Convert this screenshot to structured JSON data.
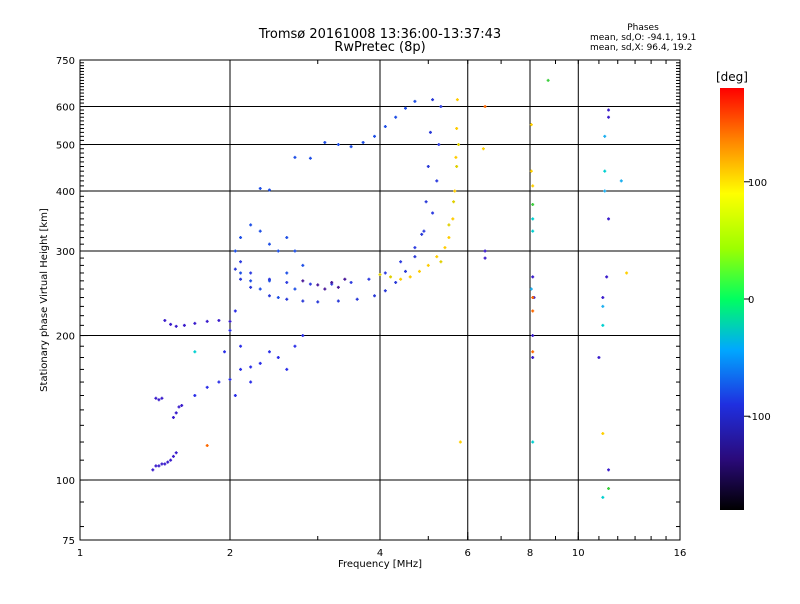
{
  "title": {
    "line1": "Tromsø 20161008 13:36:00-13:37:43",
    "line2": "RwPretec (8p)"
  },
  "phases": {
    "title": "Phases",
    "o_stats": "mean, sd,O:  -94.1, 19.1",
    "x_stats": "mean, sd,X:   96.4, 19.2"
  },
  "colorbar": {
    "unit": "[deg]",
    "tick_labels": [
      "100",
      "0",
      "-100"
    ],
    "tick_values": [
      100,
      0,
      -100
    ],
    "range": [
      -180,
      180
    ]
  },
  "chart_data": {
    "type": "scatter",
    "xlabel": "Frequency [MHz]",
    "ylabel": "Stationary phase Virtual Height [km]",
    "x_scale": "log",
    "y_scale": "log",
    "xlim": [
      1,
      16
    ],
    "ylim": [
      75,
      750
    ],
    "x_ticks": [
      1,
      2,
      4,
      6,
      8,
      10,
      16
    ],
    "x_tick_labels": [
      "1",
      "2",
      "4",
      "6",
      "8",
      "10",
      "16"
    ],
    "y_ticks": [
      75,
      100,
      200,
      300,
      400,
      500,
      600,
      750
    ],
    "y_tick_labels": [
      "75",
      "100",
      "200",
      "300",
      "400",
      "500",
      "600",
      "750"
    ],
    "grid": true,
    "series": [
      {
        "phase": -95,
        "color": "#3a1ccc",
        "points": [
          [
            1.4,
            105
          ],
          [
            1.42,
            107
          ],
          [
            1.44,
            107
          ],
          [
            1.46,
            108
          ],
          [
            1.48,
            108
          ],
          [
            1.5,
            109
          ],
          [
            1.52,
            110
          ],
          [
            1.54,
            112
          ],
          [
            1.56,
            114
          ]
        ]
      },
      {
        "phase": -95,
        "color": "#3a1ccc",
        "points": [
          [
            1.42,
            148
          ],
          [
            1.44,
            147
          ],
          [
            1.46,
            148
          ],
          [
            1.54,
            135
          ],
          [
            1.56,
            138
          ],
          [
            1.58,
            142
          ],
          [
            1.6,
            143
          ]
        ]
      },
      {
        "phase": -95,
        "color": "#3a1ccc",
        "points": [
          [
            1.48,
            215
          ],
          [
            1.52,
            211
          ],
          [
            1.56,
            209
          ],
          [
            1.62,
            210
          ],
          [
            1.7,
            212
          ],
          [
            1.8,
            214
          ],
          [
            1.9,
            215
          ],
          [
            2.0,
            214
          ]
        ]
      },
      {
        "phase": -100,
        "color": "#2a2ee8",
        "points": [
          [
            1.7,
            150
          ],
          [
            1.8,
            156
          ],
          [
            1.9,
            160
          ],
          [
            2.0,
            162
          ],
          [
            2.05,
            150
          ],
          [
            2.1,
            170
          ],
          [
            2.2,
            172
          ],
          [
            2.3,
            175
          ],
          [
            1.95,
            185
          ],
          [
            2.1,
            190
          ],
          [
            2.2,
            160
          ],
          [
            2.4,
            185
          ],
          [
            2.5,
            180
          ],
          [
            2.6,
            170
          ],
          [
            2.7,
            190
          ],
          [
            2.8,
            200
          ],
          [
            2.0,
            205
          ],
          [
            2.05,
            225
          ]
        ]
      },
      {
        "phase": -110,
        "color": "#1f50e6",
        "points": [
          [
            2.05,
            300
          ],
          [
            2.1,
            320
          ],
          [
            2.2,
            340
          ],
          [
            2.3,
            330
          ],
          [
            2.4,
            310
          ],
          [
            2.5,
            300
          ],
          [
            2.6,
            320
          ],
          [
            2.7,
            300
          ],
          [
            2.8,
            280
          ],
          [
            2.6,
            270
          ],
          [
            2.4,
            260
          ],
          [
            2.3,
            250
          ],
          [
            2.2,
            260
          ],
          [
            2.1,
            270
          ],
          [
            2.5,
            240
          ],
          [
            2.7,
            250
          ]
        ]
      },
      {
        "phase": -100,
        "color": "#2a3ad8",
        "points": [
          [
            2.05,
            275
          ],
          [
            2.1,
            262
          ],
          [
            2.2,
            252
          ],
          [
            2.4,
            242
          ],
          [
            2.6,
            238
          ],
          [
            2.8,
            236
          ],
          [
            3.0,
            235
          ],
          [
            3.3,
            236
          ],
          [
            3.6,
            238
          ],
          [
            3.9,
            242
          ],
          [
            4.1,
            248
          ],
          [
            4.3,
            258
          ],
          [
            4.5,
            272
          ],
          [
            4.7,
            292
          ],
          [
            4.85,
            325
          ],
          [
            4.95,
            380
          ],
          [
            5.0,
            450
          ],
          [
            5.05,
            530
          ],
          [
            5.1,
            620
          ]
        ]
      },
      {
        "phase": -90,
        "color": "#2f3ee0",
        "points": [
          [
            2.1,
            285
          ],
          [
            2.2,
            270
          ],
          [
            2.4,
            262
          ],
          [
            2.6,
            258
          ],
          [
            2.9,
            256
          ],
          [
            3.2,
            256
          ],
          [
            3.5,
            258
          ],
          [
            3.8,
            262
          ],
          [
            4.1,
            270
          ],
          [
            4.4,
            285
          ],
          [
            4.7,
            305
          ],
          [
            4.9,
            330
          ],
          [
            5.1,
            360
          ],
          [
            5.2,
            420
          ],
          [
            5.25,
            500
          ],
          [
            5.3,
            600
          ]
        ]
      },
      {
        "phase": -135,
        "color": "#4a1a9a",
        "points": [
          [
            2.8,
            260
          ],
          [
            3.0,
            255
          ],
          [
            3.2,
            258
          ],
          [
            3.4,
            262
          ],
          [
            3.1,
            250
          ],
          [
            3.3,
            252
          ]
        ]
      },
      {
        "phase": -110,
        "color": "#1f4fe6",
        "points": [
          [
            2.3,
            405
          ],
          [
            2.4,
            402
          ],
          [
            2.7,
            470
          ],
          [
            2.9,
            468
          ],
          [
            3.1,
            505
          ],
          [
            3.3,
            500
          ],
          [
            3.5,
            495
          ],
          [
            3.7,
            505
          ],
          [
            3.9,
            520
          ],
          [
            4.1,
            545
          ],
          [
            4.3,
            570
          ],
          [
            4.5,
            595
          ],
          [
            4.7,
            615
          ]
        ]
      },
      {
        "phase": 105,
        "color": "#ffcc00",
        "points": [
          [
            4.4,
            262
          ],
          [
            4.6,
            265
          ],
          [
            4.8,
            272
          ],
          [
            5.0,
            280
          ],
          [
            5.2,
            292
          ],
          [
            5.4,
            305
          ],
          [
            5.5,
            320
          ],
          [
            5.6,
            350
          ],
          [
            5.65,
            400
          ],
          [
            5.68,
            470
          ],
          [
            5.7,
            540
          ],
          [
            5.72,
            620
          ]
        ]
      },
      {
        "phase": 90,
        "color": "#e0d000",
        "points": [
          [
            4.0,
            268
          ],
          [
            4.2,
            265
          ],
          [
            5.3,
            285
          ],
          [
            5.5,
            340
          ],
          [
            5.62,
            380
          ],
          [
            5.7,
            450
          ],
          [
            5.75,
            500
          ]
        ]
      },
      {
        "phase": -95,
        "color": "#3a1ccc",
        "points": [
          [
            6.5,
            300
          ],
          [
            6.5,
            290
          ],
          [
            8.1,
            265
          ],
          [
            8.15,
            240
          ],
          [
            8.1,
            200
          ],
          [
            8.1,
            180
          ],
          [
            11.5,
            590
          ],
          [
            11.5,
            570
          ],
          [
            11.5,
            350
          ],
          [
            11.4,
            265
          ],
          [
            11.2,
            240
          ],
          [
            11.0,
            180
          ],
          [
            11.5,
            105
          ]
        ]
      },
      {
        "phase": -20,
        "color": "#00d0d0",
        "points": [
          [
            8.1,
            350
          ],
          [
            8.1,
            330
          ],
          [
            8.1,
            120
          ],
          [
            11.3,
            440
          ],
          [
            11.2,
            210
          ],
          [
            11.2,
            92
          ],
          [
            1.7,
            185
          ]
        ]
      },
      {
        "phase": 150,
        "color": "#ff6a00",
        "points": [
          [
            8.1,
            240
          ],
          [
            8.1,
            225
          ],
          [
            8.1,
            185
          ],
          [
            6.5,
            600
          ],
          [
            1.8,
            118
          ]
        ]
      },
      {
        "phase": 95,
        "color": "#ffd000",
        "points": [
          [
            8.05,
            550
          ],
          [
            8.05,
            440
          ],
          [
            8.1,
            410
          ],
          [
            6.45,
            490
          ],
          [
            5.8,
            120
          ],
          [
            12.5,
            270
          ],
          [
            11.2,
            125
          ]
        ]
      },
      {
        "phase": 30,
        "color": "#3fd040",
        "points": [
          [
            8.7,
            680
          ],
          [
            8.1,
            375
          ],
          [
            11.5,
            96
          ]
        ]
      },
      {
        "phase": -70,
        "color": "#1eb0f0",
        "points": [
          [
            12.2,
            420
          ],
          [
            11.3,
            400
          ],
          [
            8.05,
            250
          ],
          [
            11.2,
            230
          ],
          [
            11.3,
            520
          ]
        ]
      }
    ]
  }
}
